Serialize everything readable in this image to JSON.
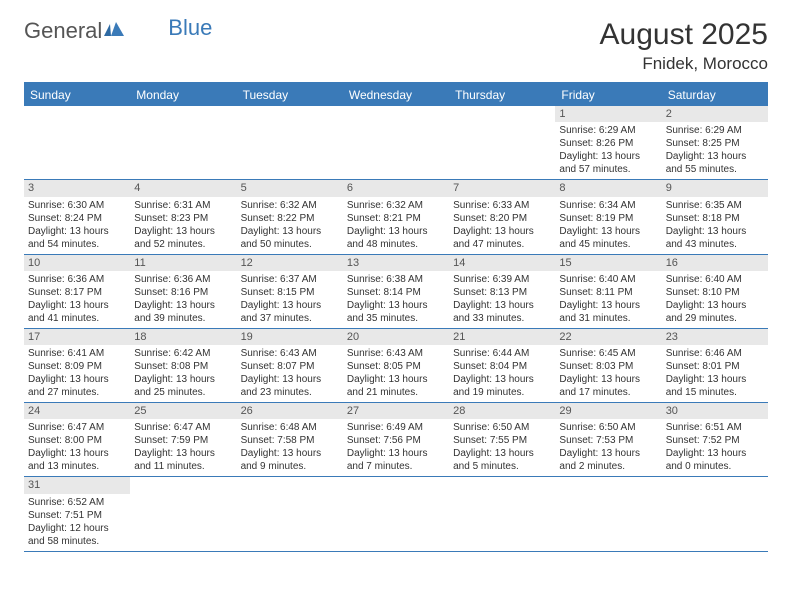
{
  "logo": {
    "general": "General",
    "blue": "Blue"
  },
  "title": "August 2025",
  "location": "Fnidek, Morocco",
  "colors": {
    "accent": "#3a7ab8",
    "daybar_bg": "#e8e8e8",
    "text": "#333333",
    "bg": "#ffffff"
  },
  "weekdays": [
    "Sunday",
    "Monday",
    "Tuesday",
    "Wednesday",
    "Thursday",
    "Friday",
    "Saturday"
  ],
  "weeks": [
    [
      null,
      null,
      null,
      null,
      null,
      {
        "n": "1",
        "sr": "Sunrise: 6:29 AM",
        "ss": "Sunset: 8:26 PM",
        "d1": "Daylight: 13 hours",
        "d2": "and 57 minutes."
      },
      {
        "n": "2",
        "sr": "Sunrise: 6:29 AM",
        "ss": "Sunset: 8:25 PM",
        "d1": "Daylight: 13 hours",
        "d2": "and 55 minutes."
      }
    ],
    [
      {
        "n": "3",
        "sr": "Sunrise: 6:30 AM",
        "ss": "Sunset: 8:24 PM",
        "d1": "Daylight: 13 hours",
        "d2": "and 54 minutes."
      },
      {
        "n": "4",
        "sr": "Sunrise: 6:31 AM",
        "ss": "Sunset: 8:23 PM",
        "d1": "Daylight: 13 hours",
        "d2": "and 52 minutes."
      },
      {
        "n": "5",
        "sr": "Sunrise: 6:32 AM",
        "ss": "Sunset: 8:22 PM",
        "d1": "Daylight: 13 hours",
        "d2": "and 50 minutes."
      },
      {
        "n": "6",
        "sr": "Sunrise: 6:32 AM",
        "ss": "Sunset: 8:21 PM",
        "d1": "Daylight: 13 hours",
        "d2": "and 48 minutes."
      },
      {
        "n": "7",
        "sr": "Sunrise: 6:33 AM",
        "ss": "Sunset: 8:20 PM",
        "d1": "Daylight: 13 hours",
        "d2": "and 47 minutes."
      },
      {
        "n": "8",
        "sr": "Sunrise: 6:34 AM",
        "ss": "Sunset: 8:19 PM",
        "d1": "Daylight: 13 hours",
        "d2": "and 45 minutes."
      },
      {
        "n": "9",
        "sr": "Sunrise: 6:35 AM",
        "ss": "Sunset: 8:18 PM",
        "d1": "Daylight: 13 hours",
        "d2": "and 43 minutes."
      }
    ],
    [
      {
        "n": "10",
        "sr": "Sunrise: 6:36 AM",
        "ss": "Sunset: 8:17 PM",
        "d1": "Daylight: 13 hours",
        "d2": "and 41 minutes."
      },
      {
        "n": "11",
        "sr": "Sunrise: 6:36 AM",
        "ss": "Sunset: 8:16 PM",
        "d1": "Daylight: 13 hours",
        "d2": "and 39 minutes."
      },
      {
        "n": "12",
        "sr": "Sunrise: 6:37 AM",
        "ss": "Sunset: 8:15 PM",
        "d1": "Daylight: 13 hours",
        "d2": "and 37 minutes."
      },
      {
        "n": "13",
        "sr": "Sunrise: 6:38 AM",
        "ss": "Sunset: 8:14 PM",
        "d1": "Daylight: 13 hours",
        "d2": "and 35 minutes."
      },
      {
        "n": "14",
        "sr": "Sunrise: 6:39 AM",
        "ss": "Sunset: 8:13 PM",
        "d1": "Daylight: 13 hours",
        "d2": "and 33 minutes."
      },
      {
        "n": "15",
        "sr": "Sunrise: 6:40 AM",
        "ss": "Sunset: 8:11 PM",
        "d1": "Daylight: 13 hours",
        "d2": "and 31 minutes."
      },
      {
        "n": "16",
        "sr": "Sunrise: 6:40 AM",
        "ss": "Sunset: 8:10 PM",
        "d1": "Daylight: 13 hours",
        "d2": "and 29 minutes."
      }
    ],
    [
      {
        "n": "17",
        "sr": "Sunrise: 6:41 AM",
        "ss": "Sunset: 8:09 PM",
        "d1": "Daylight: 13 hours",
        "d2": "and 27 minutes."
      },
      {
        "n": "18",
        "sr": "Sunrise: 6:42 AM",
        "ss": "Sunset: 8:08 PM",
        "d1": "Daylight: 13 hours",
        "d2": "and 25 minutes."
      },
      {
        "n": "19",
        "sr": "Sunrise: 6:43 AM",
        "ss": "Sunset: 8:07 PM",
        "d1": "Daylight: 13 hours",
        "d2": "and 23 minutes."
      },
      {
        "n": "20",
        "sr": "Sunrise: 6:43 AM",
        "ss": "Sunset: 8:05 PM",
        "d1": "Daylight: 13 hours",
        "d2": "and 21 minutes."
      },
      {
        "n": "21",
        "sr": "Sunrise: 6:44 AM",
        "ss": "Sunset: 8:04 PM",
        "d1": "Daylight: 13 hours",
        "d2": "and 19 minutes."
      },
      {
        "n": "22",
        "sr": "Sunrise: 6:45 AM",
        "ss": "Sunset: 8:03 PM",
        "d1": "Daylight: 13 hours",
        "d2": "and 17 minutes."
      },
      {
        "n": "23",
        "sr": "Sunrise: 6:46 AM",
        "ss": "Sunset: 8:01 PM",
        "d1": "Daylight: 13 hours",
        "d2": "and 15 minutes."
      }
    ],
    [
      {
        "n": "24",
        "sr": "Sunrise: 6:47 AM",
        "ss": "Sunset: 8:00 PM",
        "d1": "Daylight: 13 hours",
        "d2": "and 13 minutes."
      },
      {
        "n": "25",
        "sr": "Sunrise: 6:47 AM",
        "ss": "Sunset: 7:59 PM",
        "d1": "Daylight: 13 hours",
        "d2": "and 11 minutes."
      },
      {
        "n": "26",
        "sr": "Sunrise: 6:48 AM",
        "ss": "Sunset: 7:58 PM",
        "d1": "Daylight: 13 hours",
        "d2": "and 9 minutes."
      },
      {
        "n": "27",
        "sr": "Sunrise: 6:49 AM",
        "ss": "Sunset: 7:56 PM",
        "d1": "Daylight: 13 hours",
        "d2": "and 7 minutes."
      },
      {
        "n": "28",
        "sr": "Sunrise: 6:50 AM",
        "ss": "Sunset: 7:55 PM",
        "d1": "Daylight: 13 hours",
        "d2": "and 5 minutes."
      },
      {
        "n": "29",
        "sr": "Sunrise: 6:50 AM",
        "ss": "Sunset: 7:53 PM",
        "d1": "Daylight: 13 hours",
        "d2": "and 2 minutes."
      },
      {
        "n": "30",
        "sr": "Sunrise: 6:51 AM",
        "ss": "Sunset: 7:52 PM",
        "d1": "Daylight: 13 hours",
        "d2": "and 0 minutes."
      }
    ],
    [
      {
        "n": "31",
        "sr": "Sunrise: 6:52 AM",
        "ss": "Sunset: 7:51 PM",
        "d1": "Daylight: 12 hours",
        "d2": "and 58 minutes."
      },
      null,
      null,
      null,
      null,
      null,
      null
    ]
  ]
}
